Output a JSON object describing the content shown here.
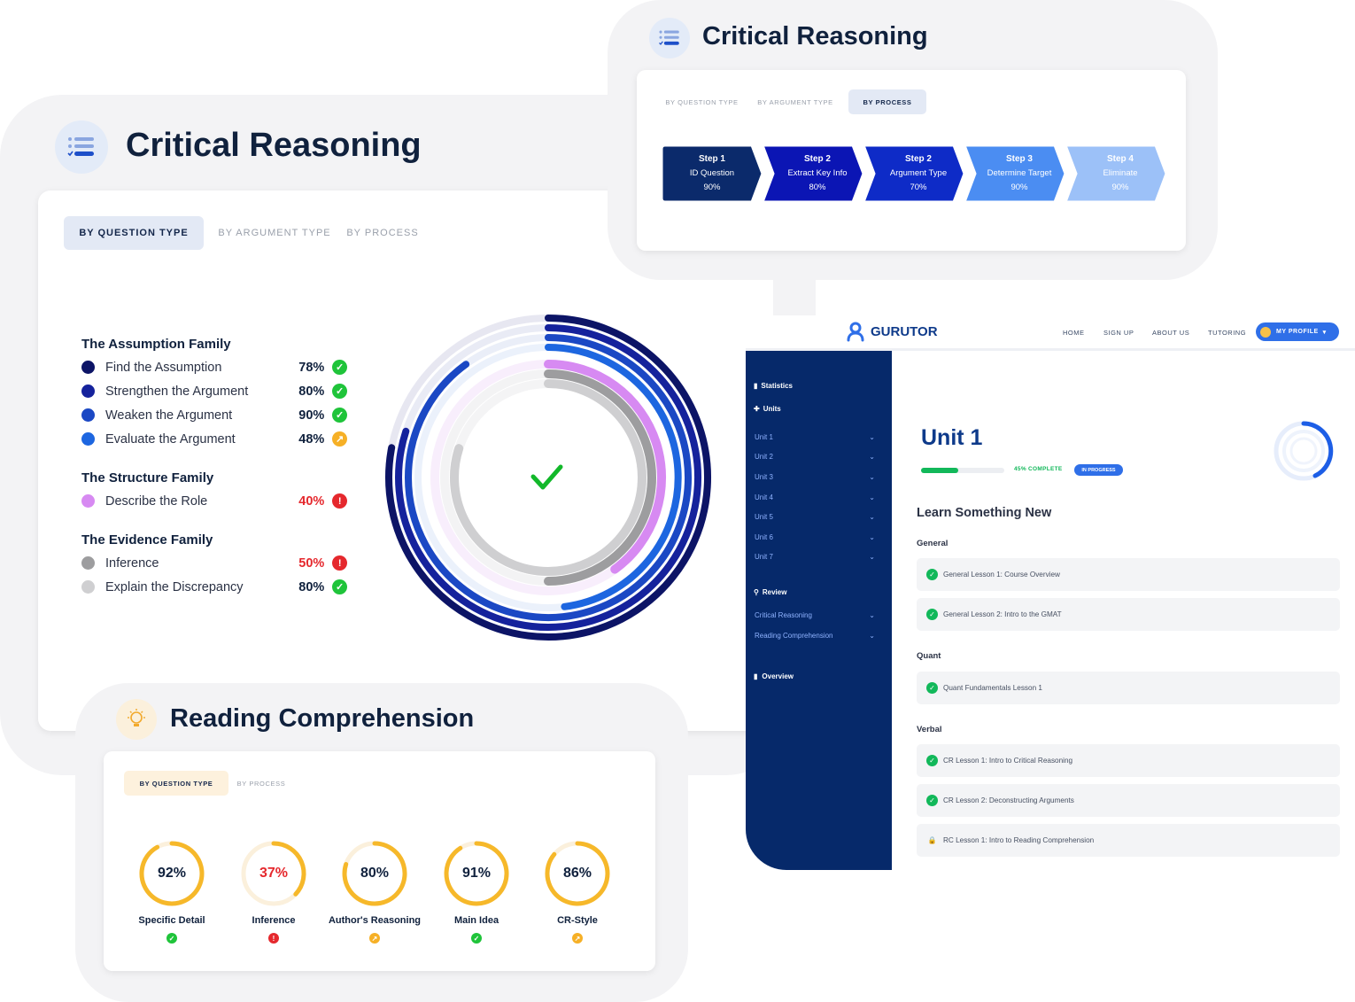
{
  "colors": {
    "ok": "#1fc43a",
    "warn": "#f6b026",
    "bad": "#e5282d",
    "navy": "#06296a"
  },
  "critical_left": {
    "title": "Critical Reasoning",
    "icon": "list-icon",
    "tabs": [
      "BY QUESTION TYPE",
      "BY ARGUMENT TYPE",
      "BY PROCESS"
    ],
    "families": [
      {
        "title": "The Assumption Family",
        "items": [
          {
            "label": "Find the Assumption",
            "pct": "78%",
            "status": "ok",
            "color": "#0c1466"
          },
          {
            "label": "Strengthen the Argument",
            "pct": "80%",
            "status": "ok",
            "color": "#15229c"
          },
          {
            "label": "Weaken the Argument",
            "pct": "90%",
            "status": "ok",
            "color": "#1b48c4"
          },
          {
            "label": "Evaluate the Argument",
            "pct": "48%",
            "status": "warn",
            "color": "#1d66e0"
          }
        ]
      },
      {
        "title": "The Structure Family",
        "items": [
          {
            "label": "Describe the Role",
            "pct": "40%",
            "status": "bad",
            "color": "#d78af2"
          }
        ]
      },
      {
        "title": "The Evidence Family",
        "items": [
          {
            "label": "Inference",
            "pct": "50%",
            "status": "bad",
            "color": "#9d9d9f"
          },
          {
            "label": "Explain the Discrepancy",
            "pct": "80%",
            "status": "ok",
            "color": "#cfcfd1"
          }
        ]
      }
    ],
    "rings": [
      {
        "value": 0.78,
        "color": "#0c1466",
        "track": "#e7e7f1"
      },
      {
        "value": 0.8,
        "color": "#15229c",
        "track": "#e9ebf5"
      },
      {
        "value": 0.9,
        "color": "#1b48c4",
        "track": "#eaeef8"
      },
      {
        "value": 0.48,
        "color": "#1d66e0",
        "track": "#ebf1fb"
      },
      {
        "value": 0.4,
        "color": "#d78af2",
        "track": "#f8eefc"
      },
      {
        "value": 0.5,
        "color": "#9d9d9f",
        "track": "#f3f3f4"
      },
      {
        "value": 0.8,
        "color": "#cfcfd1",
        "track": "#f4f4f5"
      }
    ]
  },
  "critical_top": {
    "title": "Critical Reasoning",
    "tabs": [
      "BY QUESTION TYPE",
      "BY ARGUMENT TYPE",
      "BY PROCESS"
    ],
    "steps": [
      {
        "step": "Step 1",
        "name": "ID Question",
        "pct": "90%",
        "color": "#0b2a6b"
      },
      {
        "step": "Step 2",
        "name": "Extract Key Info",
        "pct": "80%",
        "color": "#0b15b4"
      },
      {
        "step": "Step 2",
        "name": "Argument Type",
        "pct": "70%",
        "color": "#0e2bc7"
      },
      {
        "step": "Step 3",
        "name": "Determine Target",
        "pct": "90%",
        "color": "#4b8df2"
      },
      {
        "step": "Step 4",
        "name": "Eliminate",
        "pct": "90%",
        "color": "#9cc1f8"
      }
    ]
  },
  "app": {
    "brand": "GURUTOR",
    "nav": [
      "HOME",
      "SIGN UP",
      "ABOUT US",
      "TUTORING"
    ],
    "profile": "MY PROFILE",
    "sidebar": {
      "statistics": "Statistics",
      "units": "Units",
      "unit_items": [
        "Unit 1",
        "Unit 2",
        "Unit 3",
        "Unit 4",
        "Unit 5",
        "Unit 6",
        "Unit 7"
      ],
      "review": "Review",
      "review_items": [
        "Critical Reasoning",
        "Reading Comprehension"
      ],
      "overview": "Overview"
    },
    "unit_title": "Unit 1",
    "progress_label": "45% COMPLETE",
    "progress": 0.45,
    "status_badge": "IN PROGRESS",
    "learn_title": "Learn Something New",
    "sections": [
      {
        "title": "General",
        "lessons": [
          {
            "text": "General Lesson 1: Course Overview",
            "done": true
          },
          {
            "text": "General Lesson 2: Intro to the GMAT",
            "done": true
          }
        ]
      },
      {
        "title": "Quant",
        "lessons": [
          {
            "text": "Quant Fundamentals Lesson 1",
            "done": true
          }
        ]
      },
      {
        "title": "Verbal",
        "lessons": [
          {
            "text": "CR Lesson 1: Intro to Critical Reasoning",
            "done": true
          },
          {
            "text": "CR Lesson 2: Deconstructing Arguments",
            "done": true
          },
          {
            "text": "RC Lesson 1: Intro to Reading Comprehension",
            "done": false
          }
        ]
      }
    ]
  },
  "reading": {
    "title": "Reading Comprehension",
    "icon": "lightbulb-icon",
    "tabs": [
      "BY QUESTION TYPE",
      "BY PROCESS"
    ],
    "gauges": [
      {
        "label": "Specific Detail",
        "value": "92%",
        "fraction": 0.92,
        "status": "ok",
        "bad": false
      },
      {
        "label": "Inference",
        "value": "37%",
        "fraction": 0.37,
        "status": "bad",
        "bad": true
      },
      {
        "label": "Author's Reasoning",
        "value": "80%",
        "fraction": 0.8,
        "status": "warn",
        "bad": false
      },
      {
        "label": "Main Idea",
        "value": "91%",
        "fraction": 0.91,
        "status": "ok",
        "bad": false
      },
      {
        "label": "CR-Style",
        "value": "86%",
        "fraction": 0.86,
        "status": "warn",
        "bad": false
      }
    ]
  }
}
